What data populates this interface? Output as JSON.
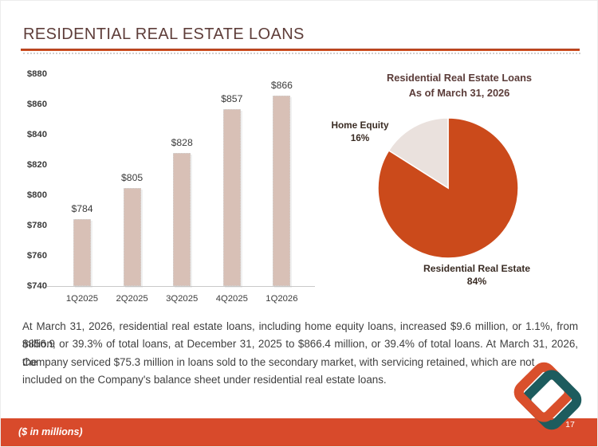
{
  "slide": {
    "title": "RESIDENTIAL REAL ESTATE LOANS",
    "page_number": "17",
    "footnote": "($ in millions)"
  },
  "chart_data": [
    {
      "type": "bar",
      "title": "",
      "xlabel": "",
      "ylabel": "",
      "categories": [
        "1Q2025",
        "2Q2025",
        "3Q2025",
        "4Q2025",
        "1Q2026"
      ],
      "values": [
        784,
        805,
        828,
        857,
        866
      ],
      "data_labels": [
        "$784",
        "$805",
        "$828",
        "$857",
        "$866"
      ],
      "ylim": [
        740,
        880
      ],
      "ytick_step": 20,
      "ytick_labels": [
        "$880",
        "$860",
        "$840",
        "$820",
        "$800",
        "$780",
        "$760",
        "$740"
      ],
      "grid": false,
      "legend": false,
      "bar_color": "#d8c0b6",
      "units": "$ in millions"
    },
    {
      "type": "pie",
      "title": "Residential Real Estate Loans",
      "subtitle": "As of March 31, 2026",
      "start": "12-oclock",
      "direction": "clockwise",
      "legend": false,
      "slices": [
        {
          "label": "Residential Real Estate",
          "pct": 84,
          "pct_label": "84%",
          "color": "#cb4a1b"
        },
        {
          "label": "Home Equity",
          "pct": 16,
          "pct_label": "16%",
          "color": "#eae1dd"
        }
      ]
    }
  ],
  "body": {
    "lines": [
      "At March 31, 2026, residential real estate loans, including home equity loans, increased $9.6 million, or 1.1%, from $856.9",
      "million, or 39.3% of total loans, at December 31, 2025 to $866.4 million, or 39.4% of total loans. At March 31, 2026, the",
      "Company serviced $75.3 million in loans sold to the secondary market, with servicing retained, which are not",
      "included on the Company's balance sheet under residential real estate loans."
    ]
  },
  "colors": {
    "title_text": "#5e3d39",
    "divider": "#c7491f",
    "footer_bar": "#d84a2b",
    "bar_fill": "#d8c0b6",
    "pie_orange": "#cb4a1b",
    "pie_light": "#eae1dd",
    "body_text": "#3f3f3f",
    "logo_orange": "#d94f2b",
    "logo_teal": "#1d5c5e"
  }
}
